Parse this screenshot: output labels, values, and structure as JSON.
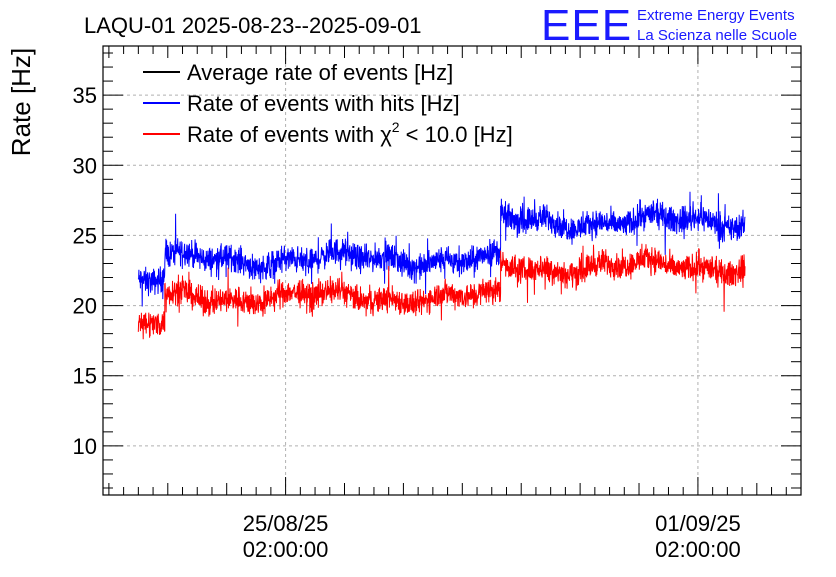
{
  "chart_data": {
    "type": "line",
    "title": "LAQU-01 2025-08-23--2025-09-01",
    "ylabel": "Rate [Hz]",
    "xlabel": "",
    "ylim": [
      6.5,
      38.5
    ],
    "y_ticks": [
      10,
      15,
      20,
      25,
      30,
      35
    ],
    "x_ticks": [
      {
        "date": "25/08/25",
        "time": "02:00:00",
        "day": 2.0
      },
      {
        "date": "01/09/25",
        "time": "02:00:00",
        "day": 9.0
      }
    ],
    "x_range_days": [
      -1.1,
      10.75
    ],
    "grid": true,
    "legend_position": "top-left",
    "series": [
      {
        "name": "Average rate of events [Hz]",
        "color": "#000000",
        "segments": [],
        "noise": 0
      },
      {
        "name": "Rate of events with hits [Hz]",
        "color": "#0000ff",
        "segments": [
          {
            "start": -0.5,
            "end": -0.05,
            "mean": 21.8
          },
          {
            "start": -0.05,
            "end": 5.65,
            "mean": 23.3
          },
          {
            "start": 5.65,
            "end": 9.8,
            "mean": 26.0
          }
        ],
        "noise": 0.8
      },
      {
        "name": "Rate of events with χ² < 10.0 [Hz]",
        "color": "#ff0000",
        "segments": [
          {
            "start": -0.5,
            "end": -0.05,
            "mean": 18.6
          },
          {
            "start": -0.05,
            "end": 5.65,
            "mean": 20.6
          },
          {
            "start": 5.65,
            "end": 9.8,
            "mean": 22.8
          }
        ],
        "noise": 0.8
      }
    ],
    "legend_entries": {
      "avg": "Average rate of events [Hz]",
      "hits": "Rate of events with hits [Hz]",
      "chi_prefix": "Rate of events with χ",
      "chi_sup": "2",
      "chi_suffix": " < 10.0 [Hz]"
    }
  },
  "logo": {
    "mark": "EEE",
    "line1": "Extreme Energy Events",
    "line2": "La Scienza nelle Scuole",
    "color": "#1a1aff"
  }
}
